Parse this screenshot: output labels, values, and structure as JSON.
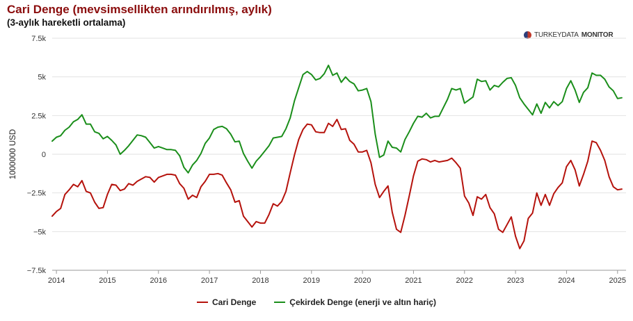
{
  "header": {
    "title": "Cari Denge (mevsimsellikten arındırılmış, aylık)",
    "subtitle": "(3-aylık hareketli ortalama)"
  },
  "logo": {
    "text_light": "TURKEYDATA",
    "text_bold": "MONITOR"
  },
  "colors": {
    "cari": "#b5120c",
    "cekirdek": "#1a8e1a",
    "title": "#8b0d0d"
  },
  "chart_data": {
    "type": "line",
    "title": "Cari Denge (mevsimsellikten arındırılmış, aylık)",
    "subtitle": "(3-aylık hareketli ortalama)",
    "ylabel": "1000000 USD",
    "xlabel": "",
    "ylim": [
      -7500,
      7500
    ],
    "yticks": [
      -7500,
      -5000,
      -2500,
      0,
      2500,
      5000,
      7500
    ],
    "ytick_labels": [
      "−7.5k",
      "−5k",
      "−2.5k",
      "0",
      "2.5k",
      "5k",
      "7.5k"
    ],
    "x_range": [
      "2013-12",
      "2025-03"
    ],
    "x_tick_labels": [
      "2014",
      "2015",
      "2016",
      "2017",
      "2018",
      "2019",
      "2020",
      "2021",
      "2022",
      "2023",
      "2024",
      "2025"
    ],
    "grid": "horizontal",
    "legend_position": "bottom-center",
    "series": [
      {
        "name": "Cari Denge",
        "color": "#b5120c",
        "points": [
          [
            "2013-12",
            -4000
          ],
          [
            "2014-01",
            -3700
          ],
          [
            "2014-02",
            -3500
          ],
          [
            "2014-03",
            -2600
          ],
          [
            "2014-04",
            -2300
          ],
          [
            "2014-05",
            -1950
          ],
          [
            "2014-06",
            -2100
          ],
          [
            "2014-07",
            -1700
          ],
          [
            "2014-08",
            -2400
          ],
          [
            "2014-09",
            -2500
          ],
          [
            "2014-10",
            -3100
          ],
          [
            "2014-11",
            -3500
          ],
          [
            "2014-12",
            -3450
          ],
          [
            "2015-01",
            -2600
          ],
          [
            "2015-02",
            -1950
          ],
          [
            "2015-03",
            -2000
          ],
          [
            "2015-04",
            -2350
          ],
          [
            "2015-05",
            -2250
          ],
          [
            "2015-06",
            -1900
          ],
          [
            "2015-07",
            -2000
          ],
          [
            "2015-08",
            -1750
          ],
          [
            "2015-09",
            -1600
          ],
          [
            "2015-10",
            -1450
          ],
          [
            "2015-11",
            -1500
          ],
          [
            "2015-12",
            -1800
          ],
          [
            "2016-01",
            -1500
          ],
          [
            "2016-02",
            -1400
          ],
          [
            "2016-03",
            -1300
          ],
          [
            "2016-04",
            -1300
          ],
          [
            "2016-05",
            -1350
          ],
          [
            "2016-06",
            -1900
          ],
          [
            "2016-07",
            -2200
          ],
          [
            "2016-08",
            -2900
          ],
          [
            "2016-09",
            -2650
          ],
          [
            "2016-10",
            -2800
          ],
          [
            "2016-11",
            -2100
          ],
          [
            "2016-12",
            -1750
          ],
          [
            "2017-01",
            -1300
          ],
          [
            "2017-02",
            -1300
          ],
          [
            "2017-03",
            -1250
          ],
          [
            "2017-04",
            -1350
          ],
          [
            "2017-05",
            -1850
          ],
          [
            "2017-06",
            -2300
          ],
          [
            "2017-07",
            -3100
          ],
          [
            "2017-08",
            -3000
          ],
          [
            "2017-09",
            -4000
          ],
          [
            "2017-10",
            -4350
          ],
          [
            "2017-11",
            -4700
          ],
          [
            "2017-12",
            -4350
          ],
          [
            "2018-01",
            -4450
          ],
          [
            "2018-02",
            -4450
          ],
          [
            "2018-03",
            -3900
          ],
          [
            "2018-04",
            -3200
          ],
          [
            "2018-05",
            -3350
          ],
          [
            "2018-06",
            -3050
          ],
          [
            "2018-07",
            -2400
          ],
          [
            "2018-08",
            -1200
          ],
          [
            "2018-09",
            -50
          ],
          [
            "2018-10",
            950
          ],
          [
            "2018-11",
            1600
          ],
          [
            "2018-12",
            1950
          ],
          [
            "2019-01",
            1900
          ],
          [
            "2019-02",
            1450
          ],
          [
            "2019-03",
            1400
          ],
          [
            "2019-04",
            1400
          ],
          [
            "2019-05",
            2000
          ],
          [
            "2019-06",
            1800
          ],
          [
            "2019-07",
            2250
          ],
          [
            "2019-08",
            1600
          ],
          [
            "2019-09",
            1650
          ],
          [
            "2019-10",
            900
          ],
          [
            "2019-11",
            650
          ],
          [
            "2019-12",
            150
          ],
          [
            "2020-01",
            150
          ],
          [
            "2020-02",
            250
          ],
          [
            "2020-03",
            -550
          ],
          [
            "2020-04",
            -1950
          ],
          [
            "2020-05",
            -2800
          ],
          [
            "2020-06",
            -2400
          ],
          [
            "2020-07",
            -2050
          ],
          [
            "2020-08",
            -3750
          ],
          [
            "2020-09",
            -4850
          ],
          [
            "2020-10",
            -5050
          ],
          [
            "2020-11",
            -3950
          ],
          [
            "2020-12",
            -2700
          ],
          [
            "2021-01",
            -1400
          ],
          [
            "2021-02",
            -450
          ],
          [
            "2021-03",
            -300
          ],
          [
            "2021-04",
            -350
          ],
          [
            "2021-05",
            -500
          ],
          [
            "2021-06",
            -400
          ],
          [
            "2021-07",
            -500
          ],
          [
            "2021-08",
            -450
          ],
          [
            "2021-09",
            -400
          ],
          [
            "2021-10",
            -250
          ],
          [
            "2021-11",
            -550
          ],
          [
            "2021-12",
            -900
          ],
          [
            "2022-01",
            -2700
          ],
          [
            "2022-02",
            -3150
          ],
          [
            "2022-03",
            -3950
          ],
          [
            "2022-04",
            -2750
          ],
          [
            "2022-05",
            -2900
          ],
          [
            "2022-06",
            -2600
          ],
          [
            "2022-07",
            -3450
          ],
          [
            "2022-08",
            -3850
          ],
          [
            "2022-09",
            -4850
          ],
          [
            "2022-10",
            -5050
          ],
          [
            "2022-11",
            -4550
          ],
          [
            "2022-12",
            -4050
          ],
          [
            "2023-01",
            -5300
          ],
          [
            "2023-02",
            -6100
          ],
          [
            "2023-03",
            -5600
          ],
          [
            "2023-04",
            -4150
          ],
          [
            "2023-05",
            -3800
          ],
          [
            "2023-06",
            -2500
          ],
          [
            "2023-07",
            -3300
          ],
          [
            "2023-08",
            -2600
          ],
          [
            "2023-09",
            -3300
          ],
          [
            "2023-10",
            -2550
          ],
          [
            "2023-11",
            -2150
          ],
          [
            "2023-12",
            -1850
          ],
          [
            "2024-01",
            -800
          ],
          [
            "2024-02",
            -400
          ],
          [
            "2024-03",
            -1000
          ],
          [
            "2024-04",
            -2050
          ],
          [
            "2024-05",
            -1300
          ],
          [
            "2024-06",
            -450
          ],
          [
            "2024-07",
            850
          ],
          [
            "2024-08",
            750
          ],
          [
            "2024-09",
            250
          ],
          [
            "2024-10",
            -400
          ],
          [
            "2024-11",
            -1450
          ],
          [
            "2024-12",
            -2100
          ],
          [
            "2025-01",
            -2300
          ],
          [
            "2025-02",
            -2250
          ]
        ]
      },
      {
        "name": "Çekirdek Denge (enerji ve altın hariç)",
        "color": "#1a8e1a",
        "points": [
          [
            "2013-12",
            850
          ],
          [
            "2014-01",
            1100
          ],
          [
            "2014-02",
            1200
          ],
          [
            "2014-03",
            1550
          ],
          [
            "2014-04",
            1750
          ],
          [
            "2014-05",
            2100
          ],
          [
            "2014-06",
            2250
          ],
          [
            "2014-07",
            2550
          ],
          [
            "2014-08",
            1950
          ],
          [
            "2014-09",
            1950
          ],
          [
            "2014-10",
            1450
          ],
          [
            "2014-11",
            1350
          ],
          [
            "2014-12",
            1000
          ],
          [
            "2015-01",
            1150
          ],
          [
            "2015-02",
            900
          ],
          [
            "2015-03",
            600
          ],
          [
            "2015-04",
            0
          ],
          [
            "2015-05",
            250
          ],
          [
            "2015-06",
            550
          ],
          [
            "2015-07",
            900
          ],
          [
            "2015-08",
            1250
          ],
          [
            "2015-09",
            1200
          ],
          [
            "2015-10",
            1100
          ],
          [
            "2015-11",
            750
          ],
          [
            "2015-12",
            400
          ],
          [
            "2016-01",
            500
          ],
          [
            "2016-02",
            400
          ],
          [
            "2016-03",
            300
          ],
          [
            "2016-04",
            300
          ],
          [
            "2016-05",
            250
          ],
          [
            "2016-06",
            -100
          ],
          [
            "2016-07",
            -850
          ],
          [
            "2016-08",
            -1200
          ],
          [
            "2016-09",
            -700
          ],
          [
            "2016-10",
            -400
          ],
          [
            "2016-11",
            50
          ],
          [
            "2016-12",
            700
          ],
          [
            "2017-01",
            1050
          ],
          [
            "2017-02",
            1600
          ],
          [
            "2017-03",
            1750
          ],
          [
            "2017-04",
            1800
          ],
          [
            "2017-05",
            1650
          ],
          [
            "2017-06",
            1300
          ],
          [
            "2017-07",
            800
          ],
          [
            "2017-08",
            850
          ],
          [
            "2017-09",
            50
          ],
          [
            "2017-10",
            -450
          ],
          [
            "2017-11",
            -900
          ],
          [
            "2017-12",
            -450
          ],
          [
            "2018-01",
            -150
          ],
          [
            "2018-02",
            200
          ],
          [
            "2018-03",
            550
          ],
          [
            "2018-04",
            1050
          ],
          [
            "2018-05",
            1100
          ],
          [
            "2018-06",
            1150
          ],
          [
            "2018-07",
            1650
          ],
          [
            "2018-08",
            2350
          ],
          [
            "2018-09",
            3450
          ],
          [
            "2018-10",
            4300
          ],
          [
            "2018-11",
            5150
          ],
          [
            "2018-12",
            5350
          ],
          [
            "2019-01",
            5150
          ],
          [
            "2019-02",
            4800
          ],
          [
            "2019-03",
            4900
          ],
          [
            "2019-04",
            5200
          ],
          [
            "2019-05",
            5750
          ],
          [
            "2019-06",
            5100
          ],
          [
            "2019-07",
            5250
          ],
          [
            "2019-08",
            4650
          ],
          [
            "2019-09",
            5000
          ],
          [
            "2019-10",
            4700
          ],
          [
            "2019-11",
            4550
          ],
          [
            "2019-12",
            4100
          ],
          [
            "2020-01",
            4150
          ],
          [
            "2020-02",
            4250
          ],
          [
            "2020-03",
            3400
          ],
          [
            "2020-04",
            1300
          ],
          [
            "2020-05",
            -200
          ],
          [
            "2020-06",
            -50
          ],
          [
            "2020-07",
            850
          ],
          [
            "2020-08",
            450
          ],
          [
            "2020-09",
            400
          ],
          [
            "2020-10",
            150
          ],
          [
            "2020-11",
            950
          ],
          [
            "2020-12",
            1450
          ],
          [
            "2021-01",
            2000
          ],
          [
            "2021-02",
            2450
          ],
          [
            "2021-03",
            2400
          ],
          [
            "2021-04",
            2650
          ],
          [
            "2021-05",
            2350
          ],
          [
            "2021-06",
            2450
          ],
          [
            "2021-07",
            2450
          ],
          [
            "2021-08",
            3000
          ],
          [
            "2021-09",
            3550
          ],
          [
            "2021-10",
            4250
          ],
          [
            "2021-11",
            4150
          ],
          [
            "2021-12",
            4250
          ],
          [
            "2022-01",
            3300
          ],
          [
            "2022-02",
            3500
          ],
          [
            "2022-03",
            3700
          ],
          [
            "2022-04",
            4850
          ],
          [
            "2022-05",
            4700
          ],
          [
            "2022-06",
            4750
          ],
          [
            "2022-07",
            4150
          ],
          [
            "2022-08",
            4450
          ],
          [
            "2022-09",
            4350
          ],
          [
            "2022-10",
            4650
          ],
          [
            "2022-11",
            4900
          ],
          [
            "2022-12",
            4950
          ],
          [
            "2023-01",
            4450
          ],
          [
            "2023-02",
            3650
          ],
          [
            "2023-03",
            3250
          ],
          [
            "2023-04",
            2900
          ],
          [
            "2023-05",
            2550
          ],
          [
            "2023-06",
            3250
          ],
          [
            "2023-07",
            2650
          ],
          [
            "2023-08",
            3350
          ],
          [
            "2023-09",
            3000
          ],
          [
            "2023-10",
            3400
          ],
          [
            "2023-11",
            3150
          ],
          [
            "2023-12",
            3400
          ],
          [
            "2024-01",
            4250
          ],
          [
            "2024-02",
            4750
          ],
          [
            "2024-03",
            4150
          ],
          [
            "2024-04",
            3350
          ],
          [
            "2024-05",
            4000
          ],
          [
            "2024-06",
            4300
          ],
          [
            "2024-07",
            5250
          ],
          [
            "2024-08",
            5100
          ],
          [
            "2024-09",
            5100
          ],
          [
            "2024-10",
            4850
          ],
          [
            "2024-11",
            4350
          ],
          [
            "2024-12",
            4100
          ],
          [
            "2025-01",
            3600
          ],
          [
            "2025-02",
            3650
          ]
        ]
      }
    ]
  }
}
